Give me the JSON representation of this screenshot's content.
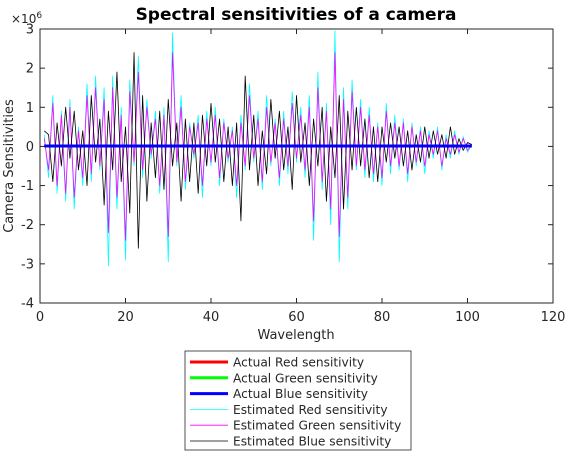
{
  "chart_data": {
    "type": "line",
    "title": "Spectral sensitivities of a camera",
    "xlabel": "Wavelength",
    "ylabel": "Camera Sensitivities",
    "y_exponent_label": "×10",
    "y_exponent_power": "6",
    "xlim": [
      0,
      120
    ],
    "ylim": [
      -4,
      3
    ],
    "xticks": [
      0,
      20,
      40,
      60,
      80,
      100,
      120
    ],
    "yticks": [
      -4,
      -3,
      -2,
      -1,
      0,
      1,
      2,
      3
    ],
    "xtick_labels": [
      "0",
      "20",
      "40",
      "60",
      "80",
      "100",
      "120"
    ],
    "ytick_labels": [
      "-4",
      "-3",
      "-2",
      "-1",
      "0",
      "1",
      "2",
      "3"
    ],
    "grid": false,
    "legend_position": "below",
    "x_start": 1,
    "x_step": 1,
    "series": [
      {
        "name": "Actual Red sensitivity",
        "color": "#ff0000",
        "line_width": 3,
        "values": [
          0.01,
          0.01,
          0.01,
          0.01,
          0.01,
          0.01,
          0.01,
          0.01,
          0.01,
          0.01,
          0.01,
          0.01,
          0.01,
          0.01,
          0.01,
          0.01,
          0.01,
          0.01,
          0.01,
          0.01,
          0.01,
          0.01,
          0.01,
          0.01,
          0.01,
          0.01,
          0.01,
          0.01,
          0.01,
          0.01,
          0.01,
          0.01,
          0.01,
          0.01,
          0.01,
          0.01,
          0.01,
          0.01,
          0.01,
          0.01,
          0.01,
          0.01,
          0.01,
          0.01,
          0.01,
          0.01,
          0.01,
          0.01,
          0.01,
          0.01,
          0.01,
          0.01,
          0.01,
          0.01,
          0.01,
          0.01,
          0.01,
          0.01,
          0.01,
          0.01,
          0.01,
          0.01,
          0.01,
          0.01,
          0.01,
          0.01,
          0.01,
          0.01,
          0.01,
          0.01,
          0.01,
          0.01,
          0.01,
          0.01,
          0.01,
          0.01,
          0.01,
          0.01,
          0.01,
          0.01,
          0.01,
          0.01,
          0.01,
          0.01,
          0.01,
          0.01,
          0.01,
          0.01,
          0.01,
          0.01,
          0.01,
          0.01,
          0.01,
          0.01,
          0.01,
          0.01,
          0.01,
          0.01,
          0.01,
          0.01,
          0.01
        ]
      },
      {
        "name": "Actual Green sensitivity",
        "color": "#00ff00",
        "line_width": 3,
        "values": [
          0.01,
          0.01,
          0.01,
          0.01,
          0.01,
          0.01,
          0.01,
          0.01,
          0.01,
          0.01,
          0.01,
          0.01,
          0.01,
          0.01,
          0.01,
          0.01,
          0.01,
          0.01,
          0.01,
          0.01,
          0.01,
          0.01,
          0.01,
          0.01,
          0.01,
          0.01,
          0.01,
          0.01,
          0.01,
          0.01,
          0.01,
          0.01,
          0.01,
          0.01,
          0.01,
          0.01,
          0.01,
          0.01,
          0.01,
          0.01,
          0.01,
          0.01,
          0.01,
          0.01,
          0.01,
          0.01,
          0.01,
          0.01,
          0.01,
          0.01,
          0.01,
          0.01,
          0.01,
          0.01,
          0.01,
          0.01,
          0.01,
          0.01,
          0.01,
          0.01,
          0.01,
          0.01,
          0.01,
          0.01,
          0.01,
          0.01,
          0.01,
          0.01,
          0.01,
          0.01,
          0.01,
          0.01,
          0.01,
          0.01,
          0.01,
          0.01,
          0.01,
          0.01,
          0.01,
          0.01,
          0.01,
          0.01,
          0.01,
          0.01,
          0.01,
          0.01,
          0.01,
          0.01,
          0.01,
          0.01,
          0.01,
          0.01,
          0.01,
          0.01,
          0.01,
          0.01,
          0.01,
          0.01,
          0.01,
          0.01,
          0.01
        ]
      },
      {
        "name": "Actual Blue sensitivity",
        "color": "#0000ff",
        "line_width": 3,
        "values": [
          0.01,
          0.01,
          0.01,
          0.01,
          0.01,
          0.01,
          0.01,
          0.01,
          0.01,
          0.01,
          0.01,
          0.01,
          0.01,
          0.01,
          0.01,
          0.01,
          0.01,
          0.01,
          0.01,
          0.01,
          0.01,
          0.01,
          0.01,
          0.01,
          0.01,
          0.01,
          0.01,
          0.01,
          0.01,
          0.01,
          0.01,
          0.01,
          0.01,
          0.01,
          0.01,
          0.01,
          0.01,
          0.01,
          0.01,
          0.01,
          0.01,
          0.01,
          0.01,
          0.01,
          0.01,
          0.01,
          0.01,
          0.01,
          0.01,
          0.01,
          0.01,
          0.01,
          0.01,
          0.01,
          0.01,
          0.01,
          0.01,
          0.01,
          0.01,
          0.01,
          0.01,
          0.01,
          0.01,
          0.01,
          0.01,
          0.01,
          0.01,
          0.01,
          0.01,
          0.01,
          0.01,
          0.01,
          0.01,
          0.01,
          0.01,
          0.01,
          0.01,
          0.01,
          0.01,
          0.01,
          0.01,
          0.01,
          0.01,
          0.01,
          0.01,
          0.01,
          0.01,
          0.01,
          0.01,
          0.01,
          0.01,
          0.01,
          0.01,
          0.01,
          0.01,
          0.01,
          0.01,
          0.01,
          0.01,
          0.01,
          0.01
        ]
      },
      {
        "name": "Estimated Red sensitivity",
        "color": "#00ffff",
        "line_width": 0.8,
        "values": [
          0.3,
          -0.8,
          1.3,
          -1.2,
          0.9,
          -1.4,
          1.2,
          -1.6,
          0.5,
          -1.0,
          1.6,
          -0.9,
          1.8,
          -0.6,
          1.5,
          -3.05,
          1.8,
          -1.6,
          1.0,
          -2.9,
          1.7,
          -0.5,
          2.3,
          -0.8,
          1.2,
          -0.3,
          0.9,
          -1.2,
          1.0,
          -2.95,
          2.9,
          -0.5,
          1.3,
          -1.1,
          0.6,
          -0.3,
          0.8,
          -1.3,
          0.9,
          -0.5,
          1.0,
          -1.0,
          0.7,
          -0.4,
          0.5,
          -1.3,
          0.8,
          -0.6,
          1.6,
          -0.4,
          0.9,
          -1.1,
          1.3,
          -0.5,
          0.7,
          -1.0,
          0.9,
          -0.7,
          1.4,
          -0.4,
          1.0,
          -0.8,
          1.3,
          -2.4,
          1.9,
          -1.1,
          1.1,
          -2.0,
          2.95,
          -2.95,
          1.5,
          -1.6,
          1.7,
          -0.6,
          1.2,
          -0.8,
          1.0,
          -0.9,
          0.6,
          -1.0,
          1.1,
          -0.7,
          0.8,
          -0.6,
          0.7,
          -0.9,
          0.6,
          -0.5,
          0.5,
          -0.7,
          0.4,
          -0.3,
          0.5,
          -0.6,
          0.3,
          -0.3,
          0.4,
          -0.2,
          0.25,
          -0.15,
          0.05
        ]
      },
      {
        "name": "Estimated Green sensitivity",
        "color": "#ff00ff",
        "line_width": 0.8,
        "values": [
          0.2,
          -0.6,
          1.1,
          -1.0,
          0.8,
          -1.2,
          1.0,
          -1.3,
          0.4,
          -0.8,
          1.3,
          -0.7,
          1.5,
          -0.5,
          1.2,
          -2.2,
          1.5,
          -1.3,
          0.8,
          -2.4,
          1.4,
          -0.4,
          1.9,
          -0.6,
          1.0,
          -0.2,
          0.7,
          -1.0,
          0.8,
          -2.3,
          2.4,
          -0.4,
          1.0,
          -0.9,
          0.5,
          -0.2,
          0.6,
          -1.0,
          0.7,
          -0.4,
          0.8,
          -0.8,
          0.6,
          -0.3,
          0.4,
          -1.0,
          0.6,
          -0.5,
          1.3,
          -0.3,
          0.7,
          -0.9,
          1.0,
          -0.4,
          0.6,
          -0.8,
          0.7,
          -0.5,
          1.1,
          -0.3,
          0.8,
          -0.6,
          1.0,
          -1.9,
          1.5,
          -0.9,
          0.9,
          -1.6,
          2.4,
          -2.3,
          1.2,
          -1.3,
          1.4,
          -0.5,
          1.0,
          -0.6,
          0.8,
          -0.7,
          0.5,
          -0.8,
          0.9,
          -0.5,
          0.6,
          -0.5,
          0.6,
          -0.7,
          0.5,
          -0.4,
          0.4,
          -0.5,
          0.3,
          -0.2,
          0.4,
          -0.5,
          0.2,
          -0.2,
          0.3,
          -0.15,
          0.2,
          -0.1,
          0.03
        ]
      },
      {
        "name": "Estimated Blue sensitivity",
        "color": "#000000",
        "line_width": 0.8,
        "values": [
          0.4,
          0.3,
          -0.9,
          0.6,
          -0.5,
          1.0,
          -0.3,
          0.9,
          -0.6,
          0.4,
          -1.0,
          1.3,
          -0.4,
          0.7,
          -1.5,
          0.9,
          -0.6,
          1.9,
          -0.9,
          0.5,
          -1.7,
          2.4,
          -2.6,
          1.3,
          -1.4,
          0.6,
          -0.8,
          0.9,
          -1.1,
          1.2,
          -0.5,
          0.6,
          -1.4,
          0.7,
          -0.9,
          0.6,
          -1.2,
          0.8,
          -0.5,
          1.1,
          -0.4,
          0.7,
          -0.9,
          0.5,
          -1.0,
          0.6,
          -1.9,
          1.8,
          -0.6,
          0.8,
          -1.0,
          0.4,
          -0.7,
          1.2,
          -0.3,
          0.9,
          -0.6,
          0.5,
          -1.1,
          1.3,
          -0.4,
          0.6,
          -1.0,
          0.7,
          -0.5,
          1.0,
          -1.4,
          0.5,
          -0.8,
          1.3,
          -1.6,
          0.9,
          -0.6,
          1.0,
          -0.5,
          0.7,
          -0.8,
          0.5,
          -0.9,
          0.5,
          -0.4,
          0.6,
          -0.3,
          0.5,
          -0.5,
          0.4,
          -0.6,
          0.3,
          -0.4,
          0.5,
          -0.3,
          0.4,
          -0.2,
          0.3,
          -0.3,
          0.5,
          -0.2,
          0.2,
          -0.1,
          0.1,
          0.05
        ]
      }
    ]
  }
}
